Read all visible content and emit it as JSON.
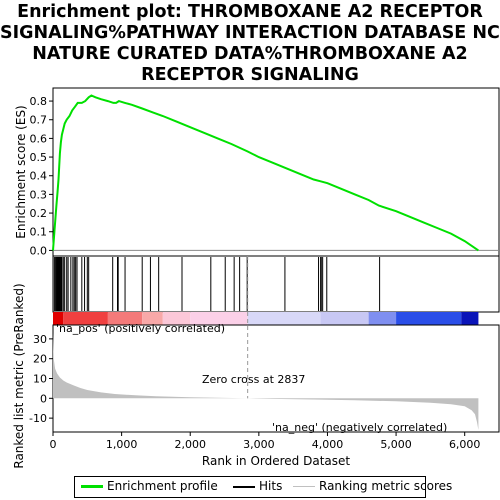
{
  "title_lines": [
    "Enrichment plot: THROMBOXANE A2 RECEPTOR",
    "SIGNALING%PATHWAY INTERACTION DATABASE NCI-",
    "NATURE CURATED DATA%THROMBOXANE A2",
    "RECEPTOR SIGNALING"
  ],
  "legend": {
    "enrichment": "Enrichment profile",
    "hits": "Hits",
    "ranking": "Ranking metric scores"
  },
  "annotations": {
    "na_pos": "'na_pos' (positively correlated)",
    "na_neg": "'na_neg' (negatively correlated)",
    "zero_cross": "Zero cross at 2837"
  },
  "colors": {
    "enrichment_line": "#00e000",
    "hit": "#000000",
    "ranking_fill": "#c0c0c0",
    "pos_label": "#cc0000",
    "neg_label": "#0000cc"
  },
  "chart_data": [
    {
      "type": "line",
      "ylabel": "Enrichment score (ES)",
      "xlim": [
        0,
        6500
      ],
      "ylim": [
        -0.03,
        0.87
      ],
      "yticks": [
        0.0,
        0.1,
        0.2,
        0.3,
        0.4,
        0.5,
        0.6,
        0.7,
        0.8
      ],
      "ytick_labels": [
        "0.0",
        "0.1",
        "0.2",
        "0.3",
        "0.4",
        "0.5",
        "0.6",
        "0.7",
        "0.8"
      ],
      "series": [
        {
          "x": [
            0,
            10,
            20,
            35,
            50,
            65,
            80,
            90,
            100,
            115,
            130,
            150,
            170,
            200,
            240,
            280,
            320,
            360,
            420,
            470,
            520,
            560,
            620,
            700,
            800,
            880,
            920,
            960,
            1050,
            1150,
            1300,
            1450,
            1600,
            1800,
            2000,
            2200,
            2400,
            2600,
            2837,
            3000,
            3200,
            3400,
            3600,
            3800,
            3900,
            4000,
            4200,
            4400,
            4600,
            4750,
            5000,
            5200,
            5400,
            5600,
            5800,
            6000,
            6200
          ],
          "y": [
            0.0,
            0.05,
            0.1,
            0.17,
            0.24,
            0.31,
            0.38,
            0.45,
            0.52,
            0.58,
            0.62,
            0.65,
            0.68,
            0.7,
            0.72,
            0.75,
            0.77,
            0.79,
            0.79,
            0.8,
            0.82,
            0.83,
            0.82,
            0.81,
            0.8,
            0.79,
            0.79,
            0.8,
            0.79,
            0.78,
            0.76,
            0.74,
            0.72,
            0.69,
            0.66,
            0.63,
            0.6,
            0.57,
            0.53,
            0.5,
            0.47,
            0.44,
            0.41,
            0.38,
            0.37,
            0.36,
            0.33,
            0.3,
            0.27,
            0.24,
            0.21,
            0.18,
            0.15,
            0.12,
            0.09,
            0.05,
            0.0
          ]
        }
      ]
    },
    {
      "type": "hits",
      "hit_positions": [
        20,
        35,
        50,
        60,
        70,
        80,
        90,
        100,
        110,
        120,
        130,
        150,
        170,
        200,
        220,
        260,
        290,
        310,
        330,
        350,
        420,
        460,
        500,
        520,
        870,
        940,
        950,
        1050,
        1300,
        1420,
        1540,
        1880,
        2300,
        2510,
        2640,
        2720,
        2830,
        3380,
        3870,
        3900,
        3910,
        3930,
        3990,
        4760
      ]
    },
    {
      "type": "area",
      "xlabel": "Rank in Ordered Dataset",
      "ylabel": "Ranked list metric (PreRanked)",
      "xlim": [
        0,
        6500
      ],
      "ylim": [
        -17,
        37
      ],
      "yticks": [
        -10,
        0,
        10,
        20,
        30
      ],
      "ytick_labels": [
        "-10",
        "0",
        "10",
        "20",
        "30"
      ],
      "xticks": [
        0,
        1000,
        2000,
        3000,
        4000,
        5000,
        6000
      ],
      "xtick_labels": [
        "0",
        "1,000",
        "2,000",
        "3,000",
        "4,000",
        "5,000",
        "6,000"
      ],
      "zero_cross": 2837,
      "series": [
        {
          "x": [
            0,
            10,
            30,
            60,
            100,
            150,
            200,
            300,
            400,
            500,
            700,
            900,
            1200,
            1500,
            2000,
            2500,
            2837,
            3200,
            3800,
            4400,
            5000,
            5500,
            5800,
            6000,
            6100,
            6150,
            6180,
            6200
          ],
          "y": [
            33,
            20,
            15,
            12.5,
            10.5,
            9,
            8,
            6.5,
            5.2,
            4.2,
            3,
            2.2,
            1.5,
            1,
            0.5,
            0.2,
            0,
            -0.3,
            -0.6,
            -1,
            -1.5,
            -2.2,
            -3,
            -4,
            -6,
            -8,
            -12,
            -16
          ]
        }
      ]
    }
  ]
}
